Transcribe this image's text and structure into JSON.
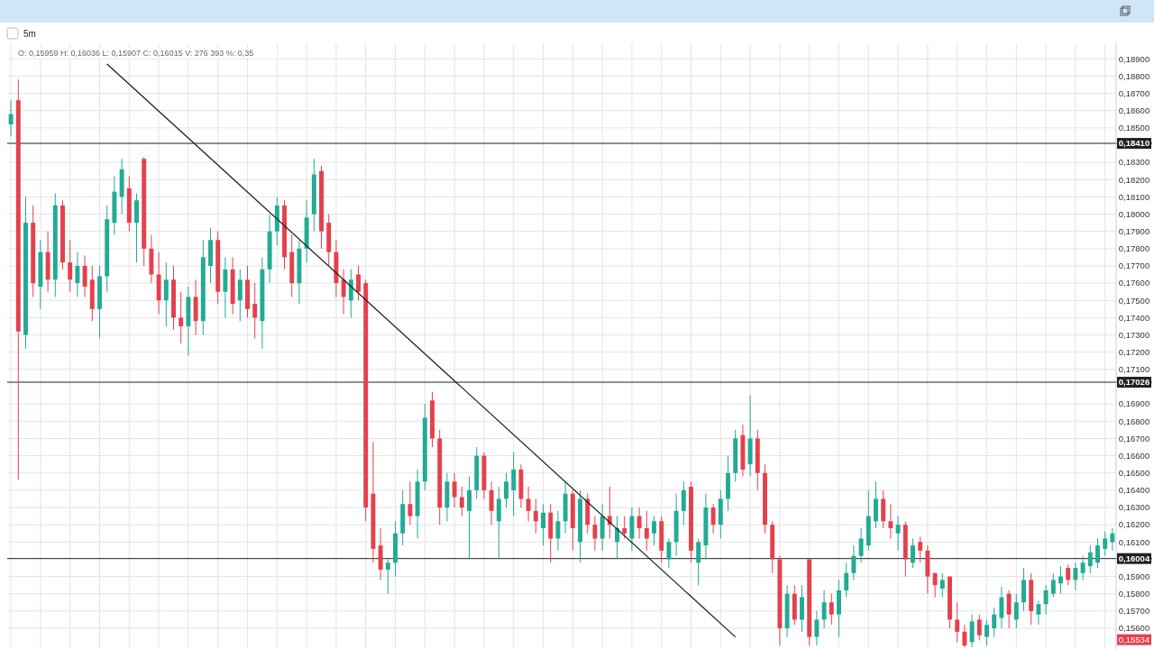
{
  "chart_data": {
    "type": "candlestick",
    "title": "5m",
    "categories": [
      null,
      null,
      null,
      null,
      null,
      null,
      null,
      null,
      null,
      null,
      null,
      null,
      null,
      null,
      null,
      null,
      null,
      null,
      null,
      null,
      null,
      null,
      null,
      null,
      null,
      null,
      null,
      null,
      null,
      null,
      null,
      null,
      null,
      null,
      null,
      null,
      null,
      null,
      null,
      null,
      null,
      null,
      null,
      null,
      null,
      null,
      null,
      null,
      null,
      null,
      null,
      null,
      null,
      null,
      null,
      null,
      null,
      null,
      null,
      null,
      null,
      null,
      null,
      null,
      null,
      null,
      null,
      null,
      null,
      null,
      null,
      null,
      null,
      null,
      null,
      null,
      null,
      null,
      null,
      null,
      null,
      null,
      null,
      null,
      null,
      null,
      null,
      null,
      null,
      null,
      null,
      null,
      null,
      null,
      null,
      null,
      null,
      null,
      null,
      null,
      null,
      null,
      null,
      null,
      null,
      null,
      null,
      null,
      null,
      null,
      null,
      null,
      null,
      null,
      null,
      null,
      null,
      null,
      null,
      null,
      null,
      null,
      null,
      null,
      null,
      null,
      null,
      null,
      null,
      null,
      null,
      null,
      null,
      null,
      null,
      null,
      null,
      null,
      null,
      null,
      null,
      null,
      null,
      null,
      null,
      null,
      null,
      null,
      null,
      null
    ],
    "ohlc": [
      [
        0.1852,
        0.1866,
        0.1845,
        0.1858
      ],
      [
        0.1866,
        0.1878,
        0.1646,
        0.1732
      ],
      [
        0.173,
        0.181,
        0.1722,
        0.1795
      ],
      [
        0.1795,
        0.1805,
        0.1752,
        0.176
      ],
      [
        0.1758,
        0.1785,
        0.1745,
        0.1778
      ],
      [
        0.1778,
        0.179,
        0.1755,
        0.1762
      ],
      [
        0.1762,
        0.1812,
        0.1752,
        0.1805
      ],
      [
        0.1805,
        0.1808,
        0.1768,
        0.1772
      ],
      [
        0.1772,
        0.1785,
        0.1755,
        0.1762
      ],
      [
        0.176,
        0.1778,
        0.1752,
        0.177
      ],
      [
        0.177,
        0.1776,
        0.1752,
        0.1758
      ],
      [
        0.1762,
        0.177,
        0.1738,
        0.1745
      ],
      [
        0.1745,
        0.177,
        0.1728,
        0.1764
      ],
      [
        0.1764,
        0.1805,
        0.1755,
        0.1797
      ],
      [
        0.1795,
        0.1822,
        0.1788,
        0.1813
      ],
      [
        0.181,
        0.1832,
        0.18,
        0.1826
      ],
      [
        0.1815,
        0.1822,
        0.179,
        0.1795
      ],
      [
        0.1795,
        0.1812,
        0.1772,
        0.1808
      ],
      [
        0.1832,
        0.1833,
        0.177,
        0.178
      ],
      [
        0.178,
        0.1788,
        0.176,
        0.1765
      ],
      [
        0.1765,
        0.1778,
        0.1742,
        0.175
      ],
      [
        0.175,
        0.1772,
        0.1735,
        0.1762
      ],
      [
        0.1762,
        0.177,
        0.1733,
        0.174
      ],
      [
        0.174,
        0.1755,
        0.1725,
        0.1735
      ],
      [
        0.1735,
        0.1758,
        0.1718,
        0.1752
      ],
      [
        0.1752,
        0.1762,
        0.173,
        0.1738
      ],
      [
        0.1738,
        0.1785,
        0.173,
        0.1775
      ],
      [
        0.177,
        0.1792,
        0.176,
        0.1785
      ],
      [
        0.1785,
        0.179,
        0.1748,
        0.1755
      ],
      [
        0.1755,
        0.1775,
        0.174,
        0.1768
      ],
      [
        0.1768,
        0.1775,
        0.1742,
        0.1748
      ],
      [
        0.175,
        0.1768,
        0.1738,
        0.1762
      ],
      [
        0.1762,
        0.177,
        0.174,
        0.1745
      ],
      [
        0.1748,
        0.176,
        0.1728,
        0.174
      ],
      [
        0.1738,
        0.1775,
        0.1722,
        0.1768
      ],
      [
        0.1768,
        0.18,
        0.176,
        0.179
      ],
      [
        0.179,
        0.181,
        0.1782,
        0.1805
      ],
      [
        0.1805,
        0.1808,
        0.1768,
        0.1775
      ],
      [
        0.1778,
        0.1788,
        0.1752,
        0.176
      ],
      [
        0.176,
        0.1785,
        0.1748,
        0.178
      ],
      [
        0.178,
        0.1808,
        0.1772,
        0.1798
      ],
      [
        0.18,
        0.1832,
        0.179,
        0.1823
      ],
      [
        0.1825,
        0.1828,
        0.178,
        0.179
      ],
      [
        0.1795,
        0.18,
        0.177,
        0.1778
      ],
      [
        0.1778,
        0.1785,
        0.1752,
        0.176
      ],
      [
        0.1762,
        0.1768,
        0.1742,
        0.1752
      ],
      [
        0.175,
        0.1768,
        0.174,
        0.1762
      ],
      [
        0.1765,
        0.177,
        0.175,
        0.1755
      ],
      [
        0.176,
        0.1762,
        0.1622,
        0.163
      ],
      [
        0.1638,
        0.1668,
        0.1598,
        0.1606
      ],
      [
        0.1608,
        0.1618,
        0.1588,
        0.1594
      ],
      [
        0.1594,
        0.16,
        0.158,
        0.1598
      ],
      [
        0.1598,
        0.1622,
        0.159,
        0.1615
      ],
      [
        0.1615,
        0.164,
        0.1608,
        0.1632
      ],
      [
        0.1632,
        0.1645,
        0.162,
        0.1625
      ],
      [
        0.1625,
        0.1652,
        0.1612,
        0.1645
      ],
      [
        0.1645,
        0.169,
        0.164,
        0.1682
      ],
      [
        0.1692,
        0.1697,
        0.1665,
        0.167
      ],
      [
        0.167,
        0.1675,
        0.162,
        0.163
      ],
      [
        0.163,
        0.165,
        0.1622,
        0.1645
      ],
      [
        0.1645,
        0.165,
        0.163,
        0.1636
      ],
      [
        0.1636,
        0.1642,
        0.1625,
        0.163
      ],
      [
        0.1628,
        0.1648,
        0.16,
        0.164
      ],
      [
        0.164,
        0.1665,
        0.1635,
        0.166
      ],
      [
        0.166,
        0.1662,
        0.1635,
        0.164
      ],
      [
        0.164,
        0.1645,
        0.162,
        0.1628
      ],
      [
        0.1622,
        0.1642,
        0.16,
        0.1635
      ],
      [
        0.1635,
        0.165,
        0.163,
        0.1645
      ],
      [
        0.164,
        0.1662,
        0.1625,
        0.1652
      ],
      [
        0.1652,
        0.1655,
        0.163,
        0.1635
      ],
      [
        0.1635,
        0.1642,
        0.1622,
        0.1628
      ],
      [
        0.1628,
        0.1635,
        0.1615,
        0.1622
      ],
      [
        0.1618,
        0.1632,
        0.1608,
        0.1627
      ],
      [
        0.1627,
        0.1632,
        0.1598,
        0.1612
      ],
      [
        0.1612,
        0.1628,
        0.1605,
        0.1622
      ],
      [
        0.1622,
        0.1645,
        0.1615,
        0.1638
      ],
      [
        0.1638,
        0.164,
        0.1605,
        0.1618
      ],
      [
        0.161,
        0.164,
        0.1598,
        0.1635
      ],
      [
        0.1635,
        0.1638,
        0.1615,
        0.162
      ],
      [
        0.162,
        0.1625,
        0.1605,
        0.1612
      ],
      [
        0.1612,
        0.1632,
        0.1605,
        0.1625
      ],
      [
        0.1625,
        0.1642,
        0.1612,
        0.162
      ],
      [
        0.161,
        0.1625,
        0.16,
        0.1618
      ],
      [
        0.1618,
        0.1625,
        0.1612,
        0.1615
      ],
      [
        0.1612,
        0.163,
        0.1605,
        0.1625
      ],
      [
        0.1625,
        0.163,
        0.1612,
        0.1618
      ],
      [
        0.1618,
        0.1628,
        0.1605,
        0.1612
      ],
      [
        0.1615,
        0.1625,
        0.1608,
        0.1622
      ],
      [
        0.1622,
        0.1625,
        0.1598,
        0.1605
      ],
      [
        0.16,
        0.1612,
        0.1595,
        0.161
      ],
      [
        0.161,
        0.1638,
        0.1602,
        0.1628
      ],
      [
        0.1628,
        0.1645,
        0.162,
        0.164
      ],
      [
        0.1642,
        0.1645,
        0.1598,
        0.1605
      ],
      [
        0.1598,
        0.1612,
        0.1585,
        0.161
      ],
      [
        0.1608,
        0.1638,
        0.16,
        0.163
      ],
      [
        0.163,
        0.1632,
        0.1615,
        0.162
      ],
      [
        0.162,
        0.164,
        0.1612,
        0.1635
      ],
      [
        0.1635,
        0.166,
        0.1628,
        0.165
      ],
      [
        0.165,
        0.1675,
        0.1645,
        0.167
      ],
      [
        0.1672,
        0.1678,
        0.1648,
        0.1652
      ],
      [
        0.1655,
        0.1695,
        0.1648,
        0.167
      ],
      [
        0.167,
        0.1675,
        0.164,
        0.165
      ],
      [
        0.165,
        0.1655,
        0.1615,
        0.162
      ],
      [
        0.162,
        0.1622,
        0.1592,
        0.16
      ],
      [
        0.16,
        0.1602,
        0.155,
        0.156
      ],
      [
        0.156,
        0.1585,
        0.1555,
        0.158
      ],
      [
        0.158,
        0.1585,
        0.1562,
        0.1565
      ],
      [
        0.1565,
        0.1585,
        0.1558,
        0.1578
      ],
      [
        0.16,
        0.16,
        0.155,
        0.1555
      ],
      [
        0.1555,
        0.157,
        0.155,
        0.1565
      ],
      [
        0.1565,
        0.1582,
        0.156,
        0.1575
      ],
      [
        0.1575,
        0.158,
        0.1562,
        0.1568
      ],
      [
        0.1568,
        0.1588,
        0.1555,
        0.1582
      ],
      [
        0.1582,
        0.1598,
        0.1578,
        0.1592
      ],
      [
        0.1592,
        0.1608,
        0.1588,
        0.1602
      ],
      [
        0.1602,
        0.1618,
        0.1598,
        0.1612
      ],
      [
        0.1608,
        0.164,
        0.1605,
        0.1625
      ],
      [
        0.1622,
        0.1645,
        0.1618,
        0.1635
      ],
      [
        0.1635,
        0.164,
        0.1618,
        0.1622
      ],
      [
        0.1622,
        0.1632,
        0.1612,
        0.1618
      ],
      [
        0.1615,
        0.1625,
        0.1605,
        0.162
      ],
      [
        0.162,
        0.1622,
        0.159,
        0.16
      ],
      [
        0.1598,
        0.1612,
        0.1595,
        0.1608
      ],
      [
        0.161,
        0.1613,
        0.1598,
        0.1605
      ],
      [
        0.1605,
        0.1608,
        0.158,
        0.159
      ],
      [
        0.1592,
        0.1592,
        0.1578,
        0.1585
      ],
      [
        0.1583,
        0.1592,
        0.1578,
        0.1588
      ],
      [
        0.159,
        0.159,
        0.156,
        0.1565
      ],
      [
        0.1565,
        0.1575,
        0.1552,
        0.1558
      ],
      [
        0.1558,
        0.1562,
        0.1549,
        0.155
      ],
      [
        0.1552,
        0.1568,
        0.1549,
        0.1564
      ],
      [
        0.1565,
        0.1568,
        0.1553,
        0.1556
      ],
      [
        0.1555,
        0.1565,
        0.155,
        0.1562
      ],
      [
        0.156,
        0.1572,
        0.1555,
        0.1568
      ],
      [
        0.1566,
        0.1584,
        0.156,
        0.1578
      ],
      [
        0.158,
        0.1582,
        0.156,
        0.1568
      ],
      [
        0.1565,
        0.158,
        0.156,
        0.1575
      ],
      [
        0.1575,
        0.1595,
        0.157,
        0.1588
      ],
      [
        0.1588,
        0.1592,
        0.1562,
        0.157
      ],
      [
        0.1568,
        0.1576,
        0.1562,
        0.1574
      ],
      [
        0.1574,
        0.1585,
        0.1568,
        0.1582
      ],
      [
        0.158,
        0.1592,
        0.1578,
        0.1588
      ],
      [
        0.1586,
        0.1596,
        0.158,
        0.159
      ],
      [
        0.1595,
        0.1597,
        0.1585,
        0.1588
      ],
      [
        0.1588,
        0.1598,
        0.1582,
        0.1595
      ],
      [
        0.1592,
        0.1602,
        0.1588,
        0.1598
      ],
      [
        0.1596,
        0.1608,
        0.1592,
        0.1604
      ],
      [
        0.1598,
        0.1612,
        0.1595,
        0.1608
      ],
      [
        0.1606,
        0.1616,
        0.1602,
        0.1612
      ],
      [
        0.161,
        0.1618,
        0.1605,
        0.1615
      ]
    ],
    "colors": [
      "#22ab94",
      "#e5404d",
      "#22ab94",
      "#e5404d",
      "#22ab94",
      "#e5404d",
      "#22ab94",
      "#e5404d",
      "#e5404d",
      "#22ab94",
      "#e5404d",
      "#e5404d",
      "#22ab94",
      "#22ab94",
      "#22ab94",
      "#22ab94",
      "#e5404d",
      "#22ab94",
      "#e5404d",
      "#e5404d",
      "#e5404d",
      "#22ab94",
      "#e5404d",
      "#e5404d",
      "#22ab94",
      "#e5404d",
      "#22ab94",
      "#22ab94",
      "#e5404d",
      "#22ab94",
      "#e5404d",
      "#22ab94",
      "#e5404d",
      "#e5404d",
      "#22ab94",
      "#22ab94",
      "#22ab94",
      "#e5404d",
      "#e5404d",
      "#22ab94",
      "#22ab94",
      "#22ab94",
      "#e5404d",
      "#e5404d",
      "#e5404d",
      "#e5404d",
      "#22ab94",
      "#e5404d",
      "#e5404d",
      "#e5404d",
      "#e5404d",
      "#22ab94",
      "#22ab94",
      "#22ab94",
      "#e5404d",
      "#22ab94",
      "#22ab94",
      "#e5404d",
      "#e5404d",
      "#22ab94",
      "#e5404d",
      "#e5404d",
      "#22ab94",
      "#22ab94",
      "#e5404d",
      "#e5404d",
      "#22ab94",
      "#22ab94",
      "#22ab94",
      "#e5404d",
      "#e5404d",
      "#e5404d",
      "#22ab94",
      "#e5404d",
      "#22ab94",
      "#22ab94",
      "#e5404d",
      "#22ab94",
      "#e5404d",
      "#e5404d",
      "#22ab94",
      "#e5404d",
      "#22ab94",
      "#e5404d",
      "#22ab94",
      "#e5404d",
      "#e5404d",
      "#22ab94",
      "#e5404d",
      "#22ab94",
      "#22ab94",
      "#22ab94",
      "#e5404d",
      "#22ab94",
      "#22ab94",
      "#e5404d",
      "#22ab94",
      "#22ab94",
      "#22ab94",
      "#e5404d",
      "#22ab94",
      "#e5404d",
      "#e5404d",
      "#e5404d",
      "#e5404d",
      "#22ab94",
      "#e5404d",
      "#22ab94",
      "#e5404d",
      "#22ab94",
      "#22ab94",
      "#e5404d",
      "#22ab94",
      "#22ab94",
      "#22ab94",
      "#22ab94",
      "#22ab94",
      "#22ab94",
      "#e5404d",
      "#e5404d",
      "#22ab94",
      "#e5404d",
      "#22ab94",
      "#e5404d",
      "#e5404d",
      "#e5404d",
      "#22ab94",
      "#e5404d",
      "#e5404d",
      "#e5404d",
      "#22ab94",
      "#e5404d",
      "#22ab94",
      "#22ab94",
      "#22ab94",
      "#e5404d",
      "#22ab94",
      "#22ab94",
      "#e5404d",
      "#22ab94",
      "#22ab94",
      "#22ab94",
      "#22ab94",
      "#e5404d",
      "#22ab94",
      "#22ab94",
      "#22ab94",
      "#22ab94",
      "#22ab94",
      "#22ab94"
    ],
    "series": [
      {
        "type": "line",
        "color": "#1a1a1a",
        "values": [
          null,
          null,
          null,
          null,
          null,
          null,
          null,
          null,
          null,
          null,
          null,
          null,
          null,
          0.1887,
          null,
          null,
          null,
          null,
          null,
          null,
          null,
          null,
          null,
          null,
          null,
          null,
          null,
          null,
          null,
          null,
          null,
          null,
          null,
          null,
          null,
          null,
          null,
          null,
          null,
          null,
          null,
          null,
          null,
          null,
          null,
          null,
          null,
          null,
          null,
          null,
          null,
          null,
          null,
          null,
          null,
          null,
          null,
          null,
          null,
          null,
          null,
          null,
          null,
          null,
          null,
          null,
          null,
          null,
          null,
          null,
          null,
          null,
          null,
          null,
          null,
          null,
          null,
          null,
          null,
          null,
          null,
          null,
          null,
          null,
          null,
          null,
          null,
          null,
          null,
          null,
          null,
          null,
          null,
          null,
          null,
          null,
          null,
          null,
          0.1555,
          null,
          null,
          null,
          null,
          null,
          null,
          null,
          null,
          null,
          null,
          null,
          null,
          null,
          null,
          null,
          null,
          null,
          null,
          null,
          null,
          null,
          null,
          null,
          null,
          null,
          null,
          null,
          null,
          null,
          null,
          null,
          null,
          null,
          null,
          null,
          null,
          null,
          null,
          null,
          null,
          null,
          null,
          null,
          null,
          null,
          null,
          null,
          null,
          null,
          null,
          null
        ]
      }
    ],
    "ylim": [
      0.1548,
      0.1899
    ],
    "yticks": [
      {
        "value": 0.156,
        "label": "0,15600"
      },
      {
        "value": 0.157,
        "label": "0,15700"
      },
      {
        "value": 0.158,
        "label": "0,15800"
      },
      {
        "value": 0.159,
        "label": "0,15900"
      },
      {
        "value": 0.161,
        "label": "0,16100"
      },
      {
        "value": 0.162,
        "label": "0,16200"
      },
      {
        "value": 0.163,
        "label": "0,16300"
      },
      {
        "value": 0.164,
        "label": "0,16400"
      },
      {
        "value": 0.165,
        "label": "0,16500"
      },
      {
        "value": 0.166,
        "label": "0,16600"
      },
      {
        "value": 0.167,
        "label": "0,16700"
      },
      {
        "value": 0.168,
        "label": "0,16800"
      },
      {
        "value": 0.169,
        "label": "0,16900"
      },
      {
        "value": 0.171,
        "label": "0,17100"
      },
      {
        "value": 0.172,
        "label": "0,17200"
      },
      {
        "value": 0.173,
        "label": "0,17300"
      },
      {
        "value": 0.174,
        "label": "0,17400"
      },
      {
        "value": 0.175,
        "label": "0,17500"
      },
      {
        "value": 0.176,
        "label": "0,17600"
      },
      {
        "value": 0.177,
        "label": "0,17700"
      },
      {
        "value": 0.178,
        "label": "0,17800"
      },
      {
        "value": 0.179,
        "label": "0,17900"
      },
      {
        "value": 0.18,
        "label": "0,18000"
      },
      {
        "value": 0.181,
        "label": "0,18100"
      },
      {
        "value": 0.182,
        "label": "0,18200"
      },
      {
        "value": 0.183,
        "label": "0,18300"
      },
      {
        "value": 0.185,
        "label": "0,18500"
      },
      {
        "value": 0.186,
        "label": "0,18600"
      },
      {
        "value": 0.187,
        "label": "0,18700"
      },
      {
        "value": 0.188,
        "label": "0,18800"
      },
      {
        "value": 0.189,
        "label": "0,18900"
      }
    ],
    "ref_lines": [
      {
        "axis": "y",
        "value": 0.1841,
        "label": "0,18410",
        "color": "#222222"
      },
      {
        "axis": "y",
        "value": 0.17026,
        "label": "0,17026",
        "color": "#222222"
      },
      {
        "axis": "y",
        "value": 0.16004,
        "label": "0,16004",
        "color": "#222222"
      }
    ],
    "annotations": [
      "O: 0,15959   H: 0,16036   L: 0,15907   C: 0,16015   V: 276 393   %: 0,35",
      {
        "text": "0,15534",
        "y": 0.15534
      }
    ],
    "grid": true,
    "tick_labels": "y"
  }
}
